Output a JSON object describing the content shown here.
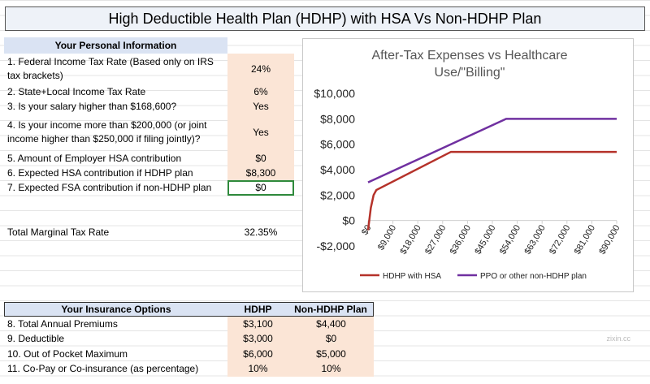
{
  "header": {
    "title": "High Deductible Health Plan (HDHP) with HSA Vs Non-HDHP Plan"
  },
  "personal": {
    "title": "Your Personal Information",
    "rows": [
      {
        "label": "1. Federal Income Tax Rate (Based only on IRS tax brackets)",
        "value": "24%"
      },
      {
        "label": "2. State+Local Income Tax Rate",
        "value": "6%"
      },
      {
        "label": "3. Is your salary higher than $168,600?",
        "value": "Yes"
      },
      {
        "label": "4. Is your income more than $200,000 (or joint income higher than $250,000 if filing jointly)?",
        "value": "Yes"
      },
      {
        "label": "5. Amount of Employer HSA contribution",
        "value": "$0"
      },
      {
        "label": "6. Expected HSA contribution if HDHP plan",
        "value": "$8,300"
      },
      {
        "label": "7. Expected FSA contribution if non-HDHP plan",
        "value": "$0"
      }
    ]
  },
  "total": {
    "label": "Total Marginal Tax Rate",
    "value": "32.35%"
  },
  "insurance": {
    "headers": [
      "Your Insurance Options",
      "HDHP",
      "Non-HDHP Plan"
    ],
    "rows": [
      [
        "8. Total Annual Premiums",
        "$3,100",
        "$4,400"
      ],
      [
        "9. Deductible",
        "$3,000",
        "$0"
      ],
      [
        "10. Out of Pocket Maximum",
        "$6,000",
        "$5,000"
      ],
      [
        "11. Co-Pay or Co-insurance (as percentage)",
        "10%",
        "10%"
      ]
    ]
  },
  "watermark": "zixin.cc",
  "chart_data": {
    "type": "line",
    "title": "After-Tax Expenses vs Healthcare Use/\"Billing\"",
    "xlim": [
      0,
      90000
    ],
    "xticks": [
      {
        "value": 0,
        "label": "$0"
      },
      {
        "value": 9000,
        "label": "$9,000"
      },
      {
        "value": 18000,
        "label": "$18,000"
      },
      {
        "value": 27000,
        "label": "$27,000"
      },
      {
        "value": 36000,
        "label": "$36,000"
      },
      {
        "value": 45000,
        "label": "$45,000"
      },
      {
        "value": 54000,
        "label": "$54,000"
      },
      {
        "value": 63000,
        "label": "$63,000"
      },
      {
        "value": 72000,
        "label": "$72,000"
      },
      {
        "value": 81000,
        "label": "$81,000"
      },
      {
        "value": 90000,
        "label": "$90,000"
      }
    ],
    "ylim": [
      -2000,
      10000
    ],
    "yticks": [
      {
        "value": -2000,
        "label": "-$2,000"
      },
      {
        "value": 0,
        "label": "$0"
      },
      {
        "value": 2000,
        "label": "$2,000"
      },
      {
        "value": 4000,
        "label": "$4,000"
      },
      {
        "value": 6000,
        "label": "$6,000"
      },
      {
        "value": 8000,
        "label": "$8,000"
      },
      {
        "value": 10000,
        "label": "$10,000"
      }
    ],
    "series": [
      {
        "name": "HDHP with HSA",
        "color": "#b5322a",
        "x": [
          0,
          1000,
          2000,
          3000,
          30000,
          90000
        ],
        "values": [
          -750,
          1000,
          2000,
          2400,
          5400,
          5400
        ]
      },
      {
        "name": "PPO or other non-HDHP plan",
        "color": "#7030a0",
        "x": [
          0,
          50000,
          90000
        ],
        "values": [
          3000,
          8000,
          8000
        ]
      }
    ]
  }
}
